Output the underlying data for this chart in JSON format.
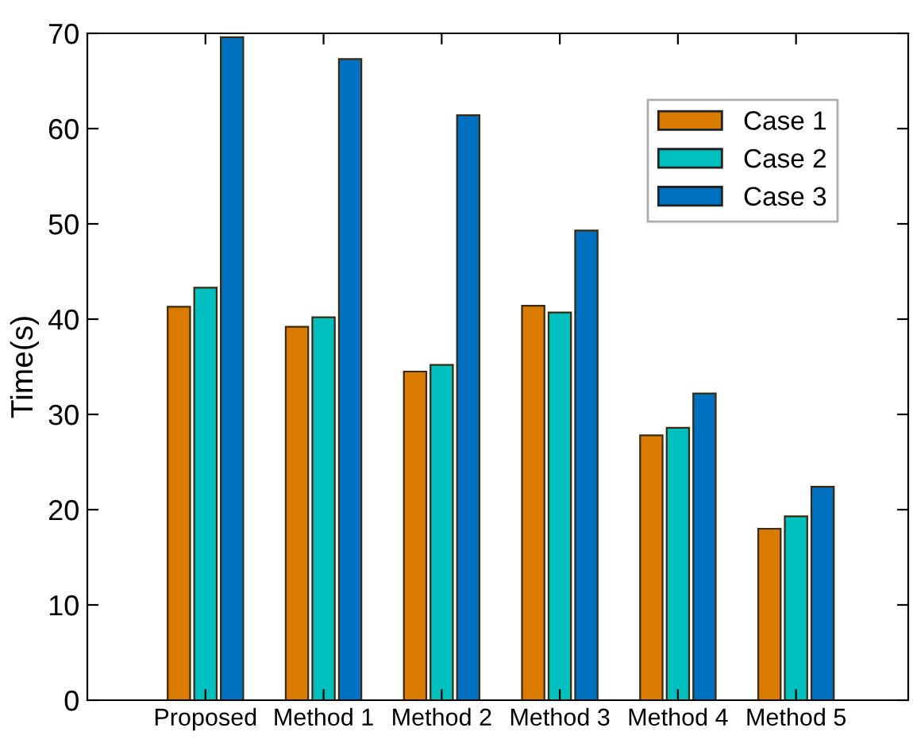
{
  "chart_data": {
    "type": "bar",
    "ylabel": "Time(s)",
    "categories": [
      "Proposed",
      "Method 1",
      "Method 2",
      "Method 3",
      "Method 4",
      "Method 5"
    ],
    "series": [
      {
        "name": "Case 1",
        "color": "#d97b00",
        "values": [
          41.3,
          39.2,
          34.5,
          41.4,
          27.8,
          18.0
        ]
      },
      {
        "name": "Case 2",
        "color": "#00bfbf",
        "values": [
          43.3,
          40.2,
          35.2,
          40.7,
          28.6,
          19.3
        ]
      },
      {
        "name": "Case 3",
        "color": "#0070c0",
        "values": [
          69.6,
          67.3,
          61.4,
          49.3,
          32.2,
          22.4
        ]
      }
    ],
    "ylim": [
      0,
      70
    ],
    "yticks": [
      0,
      10,
      20,
      30,
      40,
      50,
      60,
      70
    ],
    "grid": false,
    "legend": "top right"
  }
}
